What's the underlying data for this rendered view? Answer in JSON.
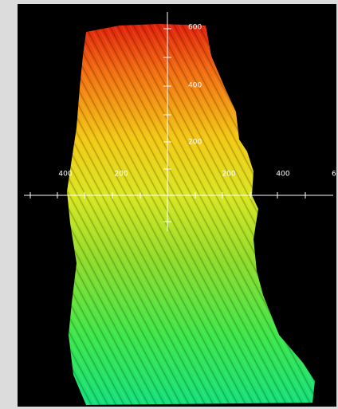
{
  "axes": {
    "x_labels": [
      "400",
      "200",
      "200",
      "400",
      "6"
    ],
    "y_labels": [
      "600",
      "400",
      "200"
    ]
  }
}
